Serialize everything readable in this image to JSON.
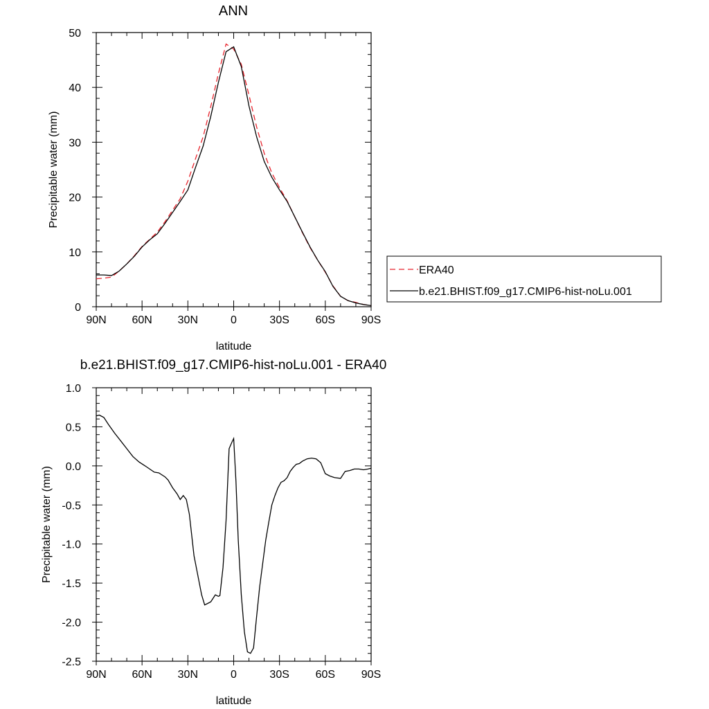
{
  "chart_data": [
    {
      "type": "line",
      "title": "ANN",
      "xlabel": "latitude",
      "ylabel": "Precipitable water (mm)",
      "xlim": [
        90,
        -90
      ],
      "ylim": [
        0,
        50
      ],
      "x_ticks": [
        90,
        60,
        30,
        0,
        -30,
        -60,
        -90
      ],
      "x_tick_labels": [
        "90N",
        "60N",
        "30N",
        "0",
        "30S",
        "60S",
        "90S"
      ],
      "y_ticks": [
        0,
        10,
        20,
        30,
        40,
        50
      ],
      "y_tick_labels": [
        "0",
        "10",
        "20",
        "30",
        "40",
        "50"
      ],
      "legend_position": "right",
      "series": [
        {
          "name": "ERA40",
          "color": "#e8222b",
          "style": "dashed",
          "x": [
            90,
            85,
            80,
            75,
            70,
            65,
            60,
            55,
            50,
            45,
            40,
            35,
            30,
            25,
            20,
            15,
            10,
            5,
            0,
            -5,
            -10,
            -15,
            -20,
            -25,
            -30,
            -35,
            -40,
            -45,
            -50,
            -55,
            -60,
            -65,
            -70,
            -75,
            -80,
            -85,
            -90
          ],
          "values": [
            5.1,
            5.2,
            5.4,
            6.5,
            7.8,
            9.3,
            11.0,
            12.3,
            13.6,
            15.5,
            17.6,
            19.7,
            22.9,
            27.0,
            31.0,
            36.5,
            42.5,
            47.9,
            47.0,
            44.2,
            38.6,
            32.8,
            28.0,
            24.4,
            21.7,
            19.3,
            16.4,
            13.5,
            10.8,
            8.5,
            6.3,
            3.8,
            1.9,
            1.1,
            0.8,
            0.4,
            0.2
          ]
        },
        {
          "name": "b.e21.BHIST.f09_g17.CMIP6-hist-noLu.001",
          "color": "#000000",
          "style": "solid",
          "x": [
            90,
            85,
            80,
            75,
            70,
            65,
            60,
            55,
            50,
            45,
            40,
            35,
            30,
            25,
            20,
            15,
            10,
            5,
            0,
            -5,
            -10,
            -15,
            -20,
            -25,
            -30,
            -35,
            -40,
            -45,
            -50,
            -55,
            -60,
            -65,
            -70,
            -75,
            -80,
            -85,
            -90
          ],
          "values": [
            5.8,
            5.8,
            5.7,
            6.5,
            7.8,
            9.2,
            10.9,
            12.2,
            13.3,
            15.2,
            17.2,
            19.2,
            21.3,
            25.4,
            29.3,
            34.7,
            40.9,
            46.5,
            47.4,
            43.8,
            36.6,
            31.0,
            26.5,
            23.6,
            21.3,
            19.2,
            16.4,
            13.6,
            10.9,
            8.5,
            6.4,
            3.7,
            1.9,
            1.1,
            0.7,
            0.4,
            0.2
          ]
        }
      ]
    },
    {
      "type": "line",
      "title": "b.e21.BHIST.f09_g17.CMIP6-hist-noLu.001 - ERA40",
      "xlabel": "latitude",
      "ylabel": "Precipitable water (mm)",
      "xlim": [
        90,
        -90
      ],
      "ylim": [
        -2.5,
        1.0
      ],
      "x_ticks": [
        90,
        60,
        30,
        0,
        -30,
        -60,
        -90
      ],
      "x_tick_labels": [
        "90N",
        "60N",
        "30N",
        "0",
        "30S",
        "60S",
        "90S"
      ],
      "y_ticks": [
        -2.5,
        -2.0,
        -1.5,
        -1.0,
        -0.5,
        0.0,
        0.5,
        1.0
      ],
      "y_tick_labels": [
        "-2.5",
        "-2.0",
        "-1.5",
        "-1.0",
        "-0.5",
        "0.0",
        "0.5",
        "1.0"
      ],
      "series": [
        {
          "color": "#000000",
          "style": "solid",
          "x": [
            90,
            88,
            85,
            82,
            78,
            74,
            70,
            66,
            62,
            58,
            55,
            52,
            49,
            45,
            43,
            40,
            37,
            35,
            33,
            31,
            29,
            26,
            23,
            21,
            19,
            17,
            15,
            12,
            10,
            9,
            7,
            5,
            3,
            1,
            0,
            -1.5,
            -3,
            -5,
            -7,
            -9,
            -11,
            -13,
            -15,
            -17,
            -19,
            -21,
            -23,
            -25,
            -27,
            -29,
            -31,
            -33,
            -35,
            -37,
            -39,
            -41,
            -43,
            -45,
            -48,
            -51,
            -54,
            -57,
            -60,
            -63,
            -66,
            -70,
            -73,
            -76,
            -79,
            -82,
            -85,
            -88,
            -90
          ],
          "values": [
            0.64,
            0.65,
            0.62,
            0.53,
            0.42,
            0.32,
            0.22,
            0.12,
            0.05,
            0.0,
            -0.04,
            -0.08,
            -0.09,
            -0.14,
            -0.18,
            -0.28,
            -0.36,
            -0.43,
            -0.38,
            -0.43,
            -0.62,
            -1.15,
            -1.45,
            -1.65,
            -1.78,
            -1.76,
            -1.74,
            -1.65,
            -1.67,
            -1.66,
            -1.3,
            -0.7,
            0.22,
            0.31,
            0.35,
            -0.2,
            -0.95,
            -1.65,
            -2.12,
            -2.38,
            -2.4,
            -2.33,
            -1.93,
            -1.55,
            -1.25,
            -0.95,
            -0.72,
            -0.5,
            -0.38,
            -0.28,
            -0.21,
            -0.19,
            -0.15,
            -0.07,
            -0.02,
            0.02,
            0.03,
            0.06,
            0.09,
            0.1,
            0.09,
            0.04,
            -0.1,
            -0.13,
            -0.15,
            -0.16,
            -0.07,
            -0.06,
            -0.04,
            -0.04,
            -0.05,
            -0.04,
            -0.03
          ]
        }
      ]
    }
  ]
}
